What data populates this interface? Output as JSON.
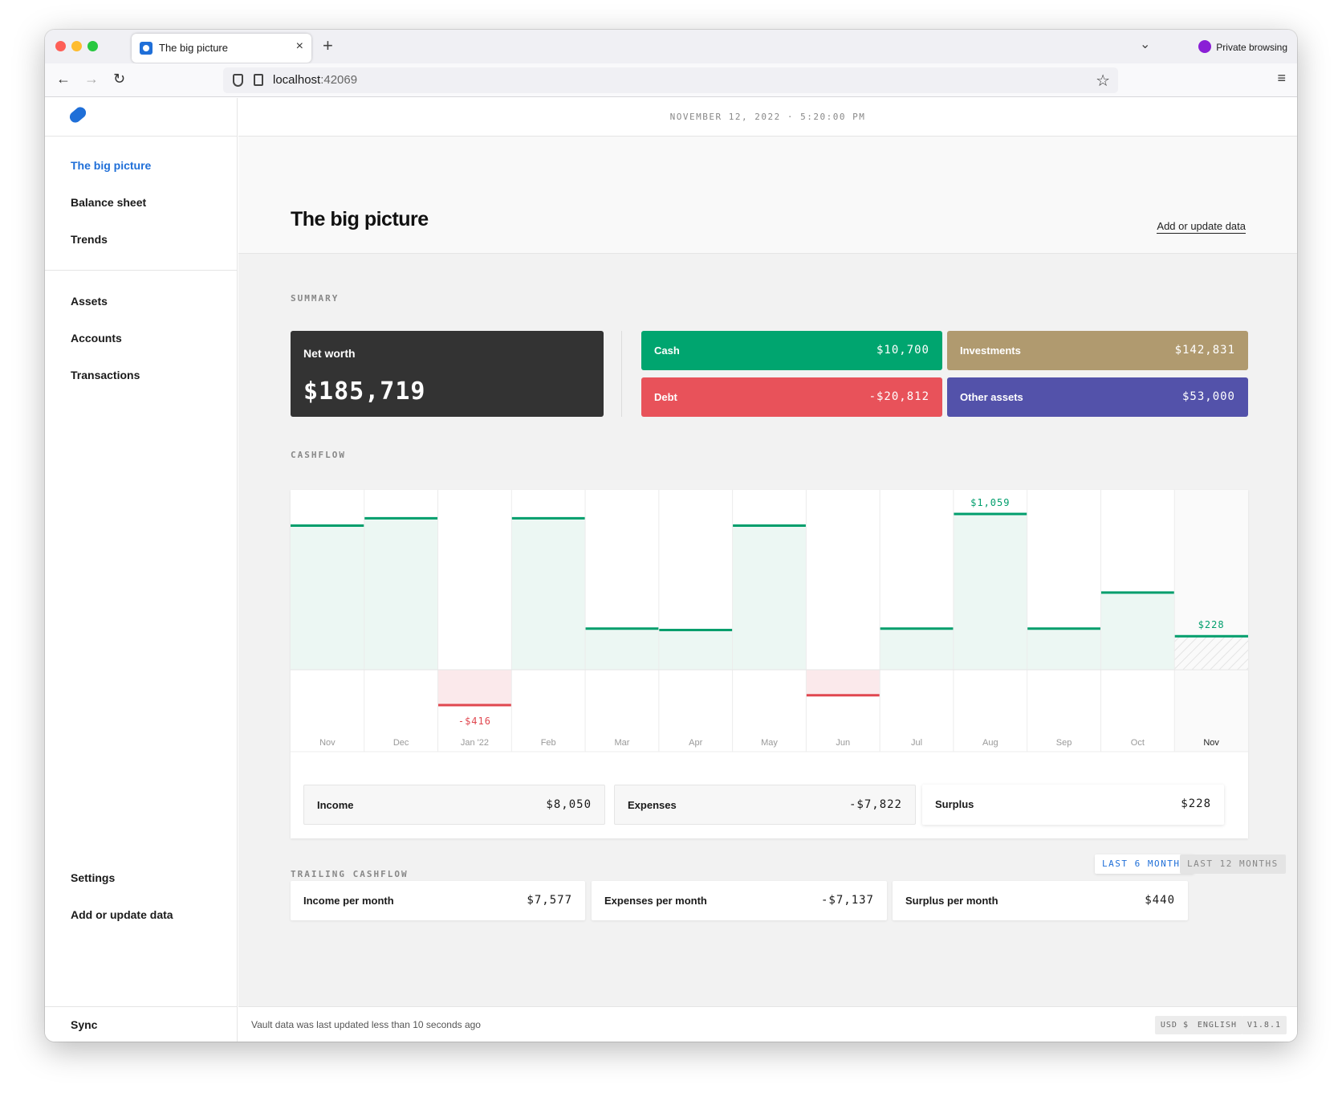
{
  "browser": {
    "tab_title": "The big picture",
    "tab_close": "×",
    "new_tab": "+",
    "tabs_dropdown": "⌄",
    "private_label": "Private browsing",
    "url_host": "localhost",
    "url_port": ":42069",
    "back": "←",
    "forward": "→",
    "reload": "↻",
    "star": "☆",
    "menu": "≡"
  },
  "sidebar": {
    "primary": [
      "The big picture",
      "Balance sheet",
      "Trends"
    ],
    "secondary": [
      "Assets",
      "Accounts",
      "Transactions"
    ],
    "bottom": [
      "Settings",
      "Add or update data"
    ],
    "sync": "Sync"
  },
  "datetime": "NOVEMBER 12, 2022 · 5:20:00 PM",
  "header": {
    "title": "The big picture",
    "link": "Add or update data"
  },
  "summary": {
    "label": "SUMMARY",
    "net_worth_label": "Net worth",
    "net_worth_value": "$185,719",
    "cash_label": "Cash",
    "cash_value": "$10,700",
    "investments_label": "Investments",
    "investments_value": "$142,831",
    "debt_label": "Debt",
    "debt_value": "-$20,812",
    "other_label": "Other assets",
    "other_value": "$53,000",
    "colors": {
      "net_worth": "#333333",
      "cash": "#00a56f",
      "investments": "#b09a6f",
      "debt": "#e8525a",
      "other": "#5352aa"
    }
  },
  "cashflow": {
    "label": "CASHFLOW",
    "totals": {
      "income_label": "Income",
      "income_value": "$8,050",
      "expenses_label": "Expenses",
      "expenses_value": "-$7,822",
      "surplus_label": "Surplus",
      "surplus_value": "$228"
    }
  },
  "chart_data": {
    "type": "bar",
    "categories": [
      "Nov",
      "Dec",
      "Jan '22",
      "Feb",
      "Mar",
      "Apr",
      "May",
      "Jun",
      "Jul",
      "Aug",
      "Sep",
      "Oct",
      "Nov"
    ],
    "values": [
      980,
      1030,
      -416,
      1030,
      280,
      270,
      980,
      -300,
      280,
      1059,
      280,
      525,
      228
    ],
    "data_labels": [
      "",
      "",
      "-$416",
      "",
      "",
      "",
      "",
      "",
      "",
      "$1,059",
      "",
      "",
      "$228"
    ],
    "ylim": [
      -450,
      1250
    ],
    "positive_color": "#009e6c",
    "negative_color": "#e0474f"
  },
  "trailing": {
    "label": "TRAILING CASHFLOW",
    "toggle_6": "LAST 6 MONTHS",
    "toggle_12": "LAST 12 MONTHS",
    "income_label": "Income per month",
    "income_value": "$7,577",
    "expenses_label": "Expenses per month",
    "expenses_value": "-$7,137",
    "surplus_label": "Surplus per month",
    "surplus_value": "$440"
  },
  "footer": {
    "status": "Vault data was last updated less than 10 seconds ago",
    "currency": "USD $",
    "language": "ENGLISH",
    "version": "V1.8.1"
  }
}
